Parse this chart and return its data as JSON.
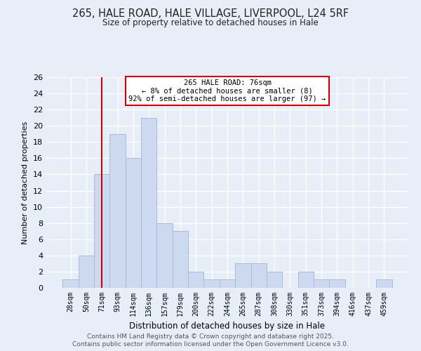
{
  "title_line1": "265, HALE ROAD, HALE VILLAGE, LIVERPOOL, L24 5RF",
  "title_line2": "Size of property relative to detached houses in Hale",
  "xlabel": "Distribution of detached houses by size in Hale",
  "ylabel": "Number of detached properties",
  "bar_labels": [
    "28sqm",
    "50sqm",
    "71sqm",
    "93sqm",
    "114sqm",
    "136sqm",
    "157sqm",
    "179sqm",
    "200sqm",
    "222sqm",
    "244sqm",
    "265sqm",
    "287sqm",
    "308sqm",
    "330sqm",
    "351sqm",
    "373sqm",
    "394sqm",
    "416sqm",
    "437sqm",
    "459sqm"
  ],
  "bar_heights": [
    1,
    4,
    14,
    19,
    16,
    21,
    8,
    7,
    2,
    1,
    1,
    3,
    3,
    2,
    0,
    2,
    1,
    1,
    0,
    0,
    1
  ],
  "bar_color": "#ccd9ee",
  "bar_edge_color": "#aabbd8",
  "vline_x_index": 2,
  "vline_color": "#cc0000",
  "annotation_title": "265 HALE ROAD: 76sqm",
  "annotation_line1": "← 8% of detached houses are smaller (8)",
  "annotation_line2": "92% of semi-detached houses are larger (97) →",
  "annotation_box_color": "#ffffff",
  "annotation_box_edge": "#cc0000",
  "ylim": [
    0,
    26
  ],
  "yticks": [
    0,
    2,
    4,
    6,
    8,
    10,
    12,
    14,
    16,
    18,
    20,
    22,
    24,
    26
  ],
  "background_color": "#e8eef8",
  "grid_color": "#ffffff",
  "footer1": "Contains HM Land Registry data © Crown copyright and database right 2025.",
  "footer2": "Contains public sector information licensed under the Open Government Licence v3.0."
}
